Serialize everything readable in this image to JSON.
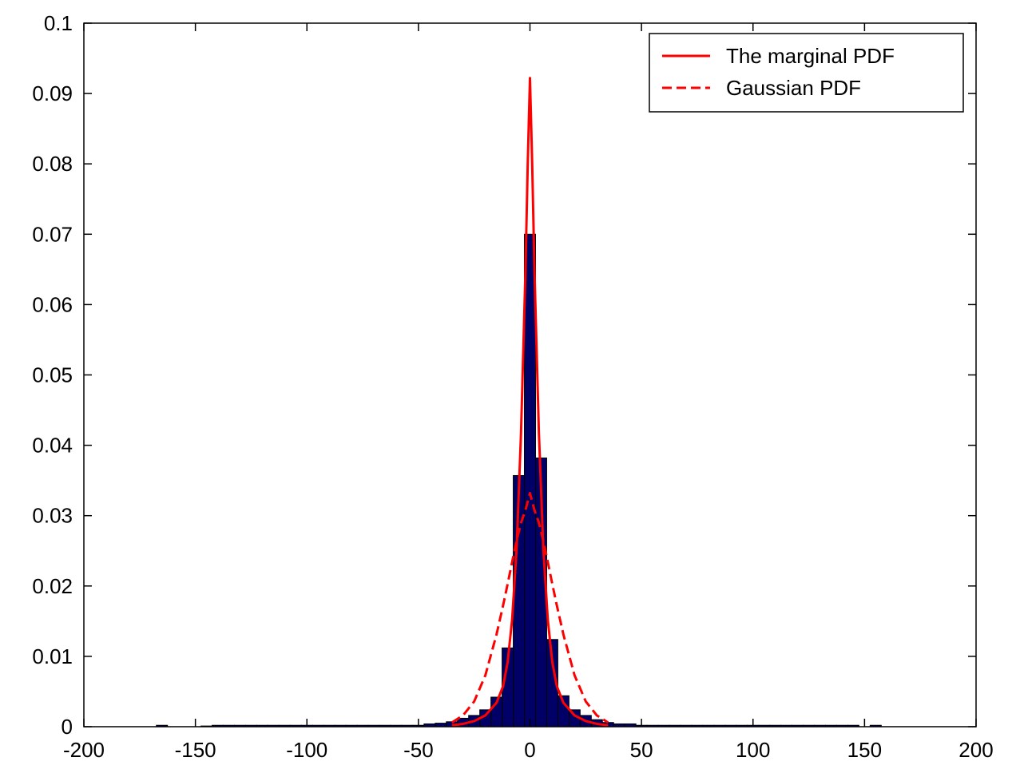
{
  "chart_data": {
    "type": "bar",
    "title": "",
    "xlabel": "",
    "ylabel": "",
    "xlim": [
      -200,
      200
    ],
    "ylim": [
      0,
      0.1
    ],
    "x_ticks": [
      -200,
      -150,
      -100,
      -50,
      0,
      50,
      100,
      150,
      200
    ],
    "y_ticks": [
      0,
      0.01,
      0.02,
      0.03,
      0.04,
      0.05,
      0.06,
      0.07,
      0.08,
      0.09,
      0.1
    ],
    "x_tick_labels": [
      "-200",
      "-150",
      "-100",
      "-50",
      "0",
      "50",
      "100",
      "150",
      "200"
    ],
    "y_tick_labels": [
      "0",
      "0.01",
      "0.02",
      "0.03",
      "0.04",
      "0.05",
      "0.06",
      "0.07",
      "0.08",
      "0.09",
      "0.1"
    ],
    "grid": false,
    "legend_position": "top-right",
    "colors": {
      "bars": "#000066",
      "bar_edge": "#000000",
      "curves": "#ff0000"
    },
    "histogram": {
      "bin_width": 5,
      "bin_centers": [
        -165,
        -145,
        -140,
        -135,
        -130,
        -125,
        -120,
        -115,
        -110,
        -105,
        -100,
        -95,
        -90,
        -85,
        -80,
        -75,
        -70,
        -65,
        -60,
        -55,
        -50,
        -45,
        -40,
        -35,
        -30,
        -25,
        -20,
        -15,
        -10,
        -5,
        0,
        5,
        10,
        15,
        20,
        25,
        30,
        35,
        40,
        45,
        50,
        55,
        60,
        65,
        70,
        75,
        80,
        85,
        90,
        95,
        100,
        105,
        110,
        115,
        120,
        125,
        130,
        135,
        140,
        145,
        155
      ],
      "values": [
        0.0002,
        0.0001,
        0.0002,
        0.0002,
        0.0002,
        0.0002,
        0.0002,
        0.0002,
        0.0002,
        0.0002,
        0.0002,
        0.0002,
        0.0002,
        0.0002,
        0.0002,
        0.0002,
        0.0002,
        0.0002,
        0.0002,
        0.0002,
        0.0002,
        0.0004,
        0.0005,
        0.0007,
        0.0012,
        0.0016,
        0.0024,
        0.0042,
        0.0112,
        0.0357,
        0.07,
        0.0382,
        0.0124,
        0.0044,
        0.0024,
        0.0016,
        0.001,
        0.0006,
        0.0004,
        0.0004,
        0.0002,
        0.0002,
        0.0002,
        0.0002,
        0.0002,
        0.0002,
        0.0002,
        0.0002,
        0.0002,
        0.0002,
        0.0002,
        0.0002,
        0.0002,
        0.0002,
        0.0002,
        0.0002,
        0.0002,
        0.0002,
        0.0002,
        0.0002,
        0.0002
      ]
    },
    "series": [
      {
        "name": "The marginal PDF",
        "style": "solid",
        "x": [
          -35,
          -30,
          -25,
          -20,
          -15,
          -12,
          -10,
          -8,
          -6,
          -4,
          -2,
          -1,
          0,
          1,
          2,
          4,
          6,
          8,
          10,
          12,
          15,
          20,
          25,
          30,
          35
        ],
        "y": [
          0.0002,
          0.0004,
          0.0008,
          0.0016,
          0.0034,
          0.0058,
          0.0092,
          0.0152,
          0.0252,
          0.0418,
          0.065,
          0.08,
          0.0922,
          0.08,
          0.065,
          0.0418,
          0.0252,
          0.0152,
          0.0092,
          0.0058,
          0.0034,
          0.0016,
          0.0008,
          0.0004,
          0.0002
        ]
      },
      {
        "name": "Gaussian PDF",
        "style": "dashed",
        "x": [
          -35,
          -30,
          -25,
          -20,
          -15,
          -12,
          -10,
          -8,
          -6,
          -4,
          -2,
          0,
          2,
          4,
          6,
          8,
          10,
          12,
          15,
          20,
          25,
          30,
          35
        ],
        "y": [
          0.0006,
          0.0016,
          0.0036,
          0.0073,
          0.0131,
          0.0173,
          0.0203,
          0.0234,
          0.0264,
          0.029,
          0.0308,
          0.0332,
          0.0308,
          0.029,
          0.0264,
          0.0234,
          0.0203,
          0.0173,
          0.0131,
          0.0073,
          0.0036,
          0.0016,
          0.0006
        ]
      }
    ]
  }
}
